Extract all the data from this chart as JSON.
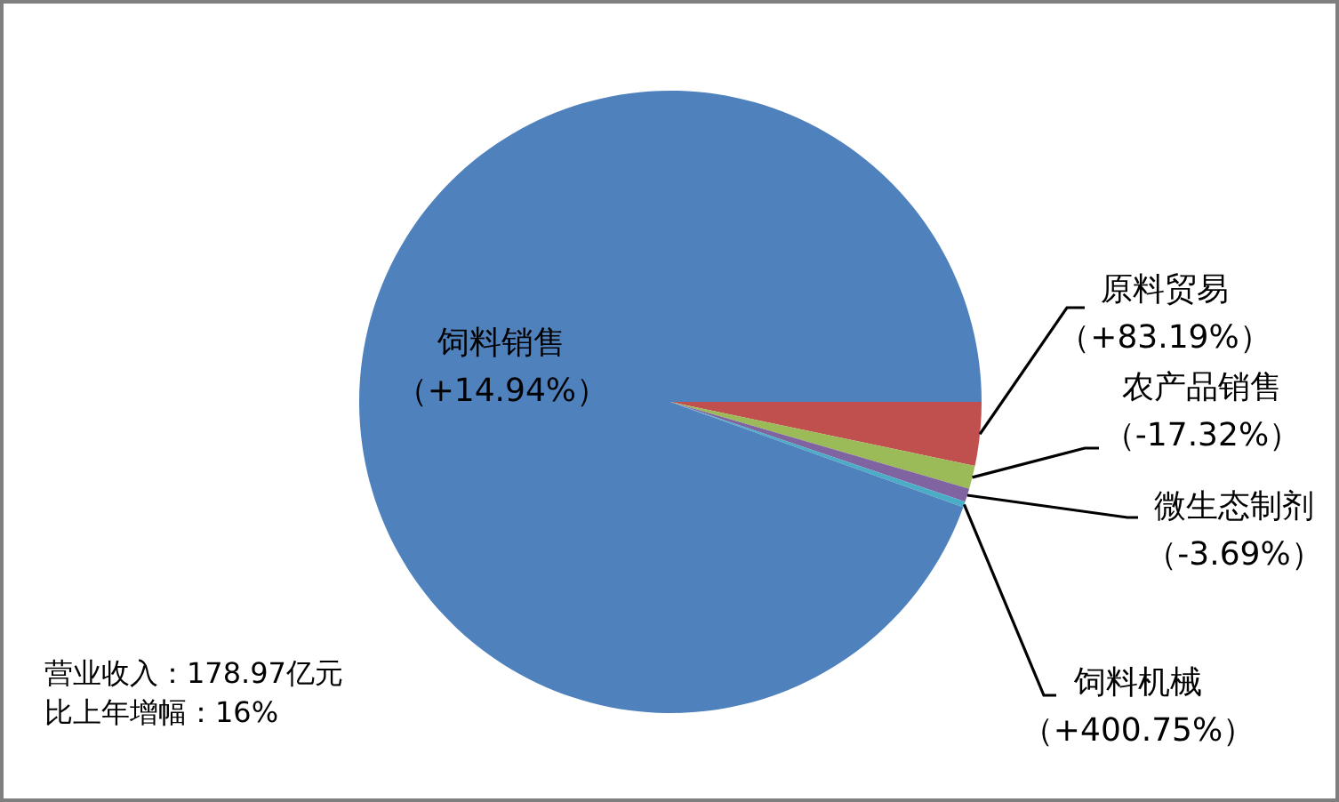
{
  "chart_data": {
    "type": "pie",
    "categories": [
      "原料贸易（+83.19%）",
      "农产品销售（-17.32%）",
      "微生态制剂（-3.69%）",
      "饲料机械（+400.75%）",
      "饲料销售（+14.94%）"
    ],
    "values": [
      3.3,
      1.2,
      0.7,
      0.3,
      94.5
    ],
    "colors": [
      "#c0504d",
      "#9bbb59",
      "#8064a2",
      "#4bacc6",
      "#4f81bd"
    ],
    "annotations": [
      "营业收入：178.97亿元",
      "比上年增幅：16%"
    ]
  }
}
